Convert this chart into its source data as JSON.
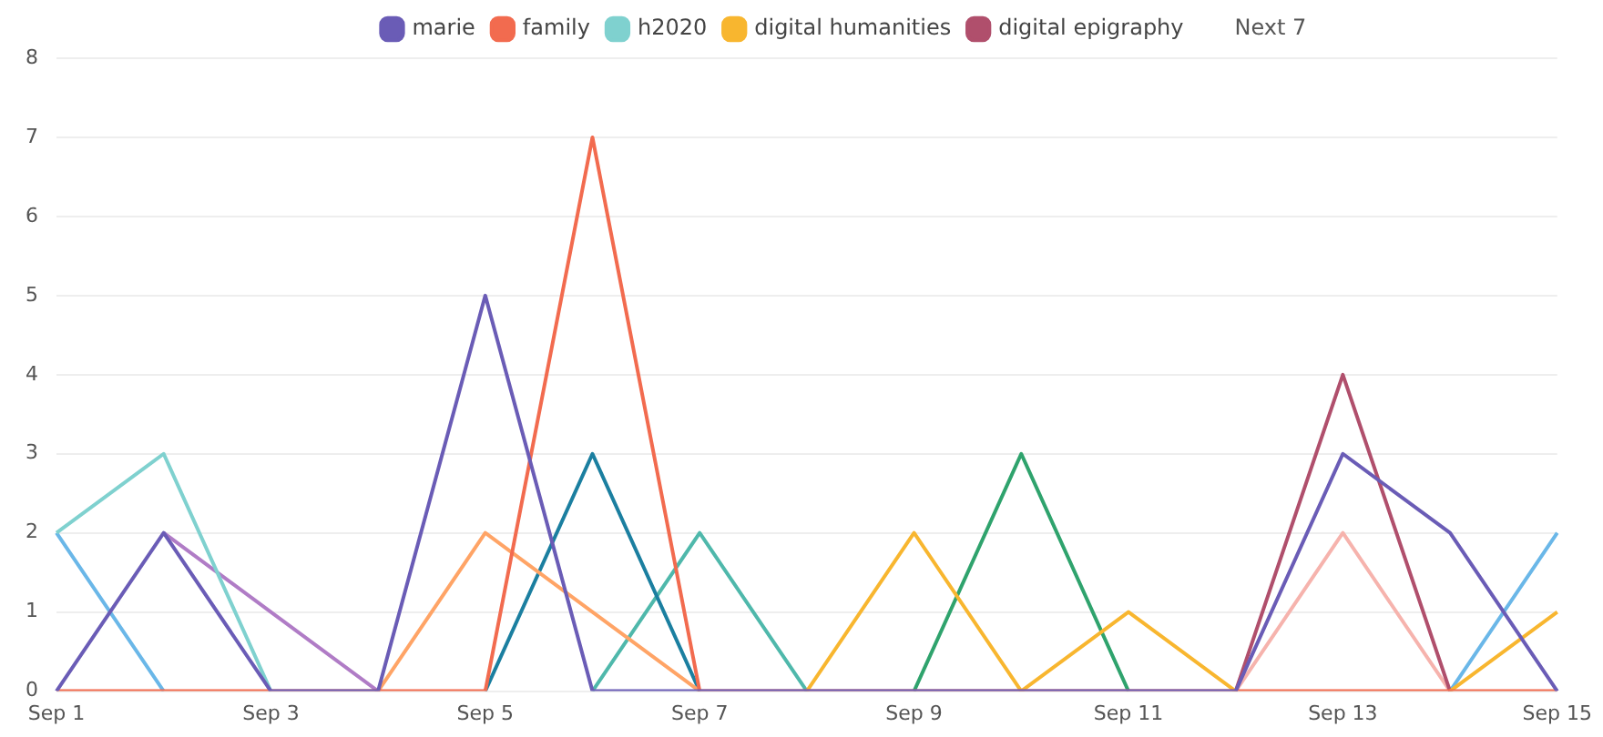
{
  "chart_data": {
    "type": "line",
    "categories": [
      "Sep 1",
      null,
      "Sep 3",
      null,
      "Sep 5",
      null,
      "Sep 7",
      null,
      "Sep 9",
      null,
      "Sep 11",
      null,
      "Sep 13",
      null,
      "Sep 15"
    ],
    "series": [
      {
        "name": "marie",
        "color": "#6a5cb6",
        "values": [
          0,
          2,
          0,
          0,
          5,
          0,
          0,
          0,
          0,
          0,
          0,
          0,
          3,
          2,
          0
        ]
      },
      {
        "name": "family",
        "color": "#f26b4f",
        "values": [
          0,
          0,
          0,
          0,
          0,
          7,
          0,
          0,
          0,
          0,
          0,
          0,
          0,
          0,
          0
        ]
      },
      {
        "name": "h2020",
        "color": "#7fd1cf",
        "values": [
          2,
          3,
          0,
          null,
          null,
          null,
          null,
          null,
          null,
          null,
          null,
          null,
          null,
          null,
          null
        ]
      },
      {
        "name": "digital humanities",
        "color": "#f8b62f",
        "values": [
          null,
          null,
          null,
          null,
          null,
          null,
          null,
          0,
          2,
          0,
          1,
          0,
          null,
          0,
          1
        ]
      },
      {
        "name": "digital epigraphy",
        "color": "#b04f6c",
        "values": [
          null,
          null,
          null,
          null,
          null,
          null,
          null,
          null,
          null,
          null,
          null,
          0,
          4,
          0,
          null
        ]
      },
      {
        "color": "#6ab7e8",
        "values": [
          2,
          0,
          null,
          null,
          null,
          null,
          null,
          null,
          null,
          null,
          null,
          null,
          null,
          0,
          2
        ]
      },
      {
        "color": "#b07cc6",
        "values": [
          null,
          2,
          1,
          0,
          null,
          null,
          null,
          null,
          null,
          null,
          null,
          null,
          null,
          null,
          null
        ]
      },
      {
        "color": "#ffa466",
        "values": [
          null,
          null,
          null,
          0,
          2,
          1,
          0,
          null,
          null,
          null,
          null,
          null,
          null,
          null,
          null
        ]
      },
      {
        "color": "#1b7fa0",
        "values": [
          null,
          null,
          null,
          null,
          0,
          3,
          0,
          null,
          null,
          null,
          null,
          null,
          null,
          null,
          null
        ]
      },
      {
        "color": "#4fb8ab",
        "values": [
          null,
          null,
          null,
          null,
          null,
          0,
          2,
          0,
          null,
          null,
          null,
          null,
          null,
          null,
          null
        ]
      },
      {
        "color": "#2fa36d",
        "values": [
          null,
          null,
          null,
          null,
          null,
          null,
          null,
          null,
          0,
          3,
          0,
          null,
          null,
          null,
          null
        ]
      },
      {
        "color": "#f6b3ad",
        "values": [
          null,
          null,
          null,
          null,
          null,
          null,
          null,
          null,
          null,
          null,
          null,
          0,
          2,
          0,
          null
        ]
      }
    ],
    "ylim": [
      0,
      8
    ],
    "yticks": [
      0,
      1,
      2,
      3,
      4,
      5,
      6,
      7,
      8
    ],
    "grid": "y",
    "legend": "top",
    "marker": "none",
    "line_style": "solid",
    "annotations": [
      "Next 7"
    ]
  }
}
